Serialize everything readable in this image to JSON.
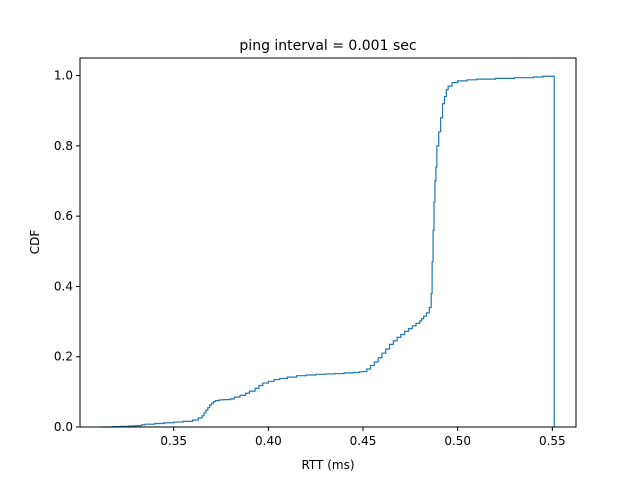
{
  "chart_data": {
    "type": "line",
    "step": true,
    "title": "ping interval = 0.001 sec",
    "xlabel": "RTT (ms)",
    "ylabel": "CDF",
    "xlim": [
      0.3005,
      0.5625
    ],
    "ylim": [
      0,
      1.05
    ],
    "xticks": [
      0.35,
      0.4,
      0.45,
      0.5,
      0.55
    ],
    "xtick_labels": [
      "0.35",
      "0.40",
      "0.45",
      "0.50",
      "0.55"
    ],
    "yticks": [
      0.0,
      0.2,
      0.4,
      0.6,
      0.8,
      1.0
    ],
    "ytick_labels": [
      "0.0",
      "0.2",
      "0.4",
      "0.6",
      "0.8",
      "1.0"
    ],
    "grid": false,
    "legend": "none",
    "series": [
      {
        "color": "#1f77b4",
        "x": [
          0.312,
          0.318,
          0.322,
          0.326,
          0.33,
          0.333,
          0.335,
          0.34,
          0.345,
          0.35,
          0.355,
          0.36,
          0.363,
          0.365,
          0.366,
          0.367,
          0.368,
          0.369,
          0.37,
          0.371,
          0.372,
          0.374,
          0.376,
          0.38,
          0.382,
          0.385,
          0.388,
          0.39,
          0.393,
          0.395,
          0.397,
          0.4,
          0.403,
          0.406,
          0.41,
          0.415,
          0.42,
          0.425,
          0.43,
          0.435,
          0.44,
          0.445,
          0.448,
          0.45,
          0.452,
          0.454,
          0.456,
          0.458,
          0.46,
          0.462,
          0.464,
          0.466,
          0.468,
          0.47,
          0.472,
          0.474,
          0.476,
          0.478,
          0.48,
          0.481,
          0.482,
          0.4835,
          0.485,
          0.486,
          0.4865,
          0.487,
          0.4875,
          0.488,
          0.4885,
          0.489,
          0.49,
          0.491,
          0.492,
          0.493,
          0.494,
          0.495,
          0.497,
          0.5,
          0.505,
          0.51,
          0.52,
          0.53,
          0.54,
          0.545,
          0.551,
          0.551
        ],
        "y": [
          0.0,
          0.001,
          0.002,
          0.003,
          0.004,
          0.006,
          0.008,
          0.01,
          0.012,
          0.014,
          0.016,
          0.02,
          0.026,
          0.032,
          0.04,
          0.048,
          0.055,
          0.063,
          0.068,
          0.072,
          0.075,
          0.077,
          0.078,
          0.08,
          0.085,
          0.09,
          0.096,
          0.102,
          0.11,
          0.118,
          0.125,
          0.13,
          0.135,
          0.138,
          0.142,
          0.146,
          0.148,
          0.15,
          0.151,
          0.152,
          0.154,
          0.155,
          0.157,
          0.158,
          0.165,
          0.175,
          0.185,
          0.197,
          0.21,
          0.222,
          0.235,
          0.245,
          0.255,
          0.263,
          0.272,
          0.28,
          0.288,
          0.295,
          0.302,
          0.308,
          0.315,
          0.325,
          0.34,
          0.38,
          0.47,
          0.56,
          0.64,
          0.7,
          0.74,
          0.8,
          0.84,
          0.88,
          0.92,
          0.94,
          0.96,
          0.97,
          0.98,
          0.985,
          0.988,
          0.99,
          0.992,
          0.994,
          0.996,
          0.998,
          1.0,
          0.0
        ]
      }
    ]
  }
}
